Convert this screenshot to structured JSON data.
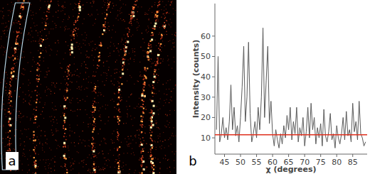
{
  "panel_labels": [
    "a",
    "b"
  ],
  "chart_data": {
    "type": "line",
    "x_label": "χ (degrees)",
    "y_label": "Intensity (counts)",
    "x": [
      42.5,
      43,
      43.5,
      44,
      44.5,
      45,
      45.5,
      46,
      46.5,
      47,
      47.5,
      48,
      48.5,
      49,
      49.5,
      50,
      50.5,
      51,
      51.5,
      52,
      52.5,
      53,
      53.5,
      54,
      54.5,
      55,
      55.5,
      56,
      56.5,
      57,
      57.5,
      58,
      58.5,
      59,
      59.5,
      60,
      60.5,
      61,
      61.5,
      62,
      62.5,
      63,
      63.5,
      64,
      64.5,
      65,
      65.5,
      66,
      66.5,
      67,
      67.5,
      68,
      68.5,
      69,
      69.5,
      70,
      70.5,
      71,
      71.5,
      72,
      72.5,
      73,
      73.5,
      74,
      74.5,
      75,
      75.5,
      76,
      76.5,
      77,
      77.5,
      78,
      78.5,
      79,
      79.5,
      80,
      80.5,
      81,
      81.5,
      82,
      82.5,
      83,
      83.5,
      84,
      84.5,
      85,
      85.5,
      86,
      86.5,
      87,
      87.5,
      88,
      88.5,
      89
    ],
    "values": [
      14,
      50,
      8,
      12,
      20,
      10,
      15,
      9,
      18,
      36,
      14,
      25,
      11,
      16,
      8,
      20,
      35,
      55,
      18,
      30,
      57,
      22,
      8,
      12,
      18,
      10,
      25,
      14,
      30,
      64,
      20,
      38,
      55,
      17,
      28,
      12,
      6,
      14,
      9,
      5,
      12,
      7,
      16,
      10,
      21,
      14,
      25,
      9,
      18,
      12,
      25,
      8,
      15,
      11,
      20,
      6,
      13,
      25,
      10,
      27,
      14,
      20,
      7,
      15,
      10,
      17,
      6,
      24,
      11,
      8,
      13,
      22,
      9,
      12,
      5,
      16,
      10,
      7,
      12,
      20,
      9,
      23,
      11,
      14,
      8,
      27,
      13,
      18,
      9,
      28,
      12,
      10,
      6,
      8
    ],
    "color": "#5a5a5a",
    "threshold": 11.5,
    "xlim": [
      42,
      89.5
    ],
    "ylim": [
      2,
      76
    ],
    "xticks": [
      45,
      50,
      55,
      60,
      65,
      70,
      75,
      80,
      85
    ],
    "yticks": [
      10,
      20,
      30,
      40,
      50,
      60
    ],
    "grid": false
  }
}
